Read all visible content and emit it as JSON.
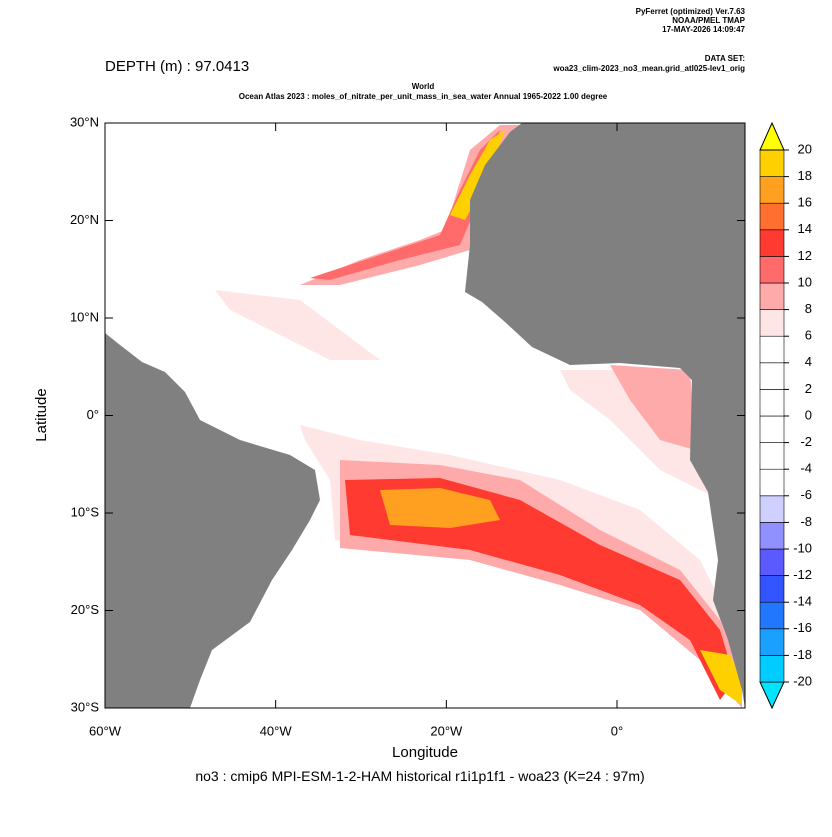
{
  "header": {
    "software": "PyFerret (optimized) Ver.7.63",
    "org": "NOAA/PMEL TMAP",
    "date": "17-MAY-2026 14:09:47",
    "dataset_label": "DATA SET:",
    "dataset": "woa23_clim-2023_no3_mean.grid_atl025-lev1_orig"
  },
  "depth": "DEPTH (m) : 97.0413",
  "title": "World",
  "subtitle": "Ocean Atlas 2023 : moles_of_nitrate_per_unit_mass_in_sea_water Annual 1965-2022 1.00 degree",
  "map": {
    "xlabel": "Longitude",
    "ylabel": "Latitude",
    "xlim": [
      -60,
      15
    ],
    "ylim": [
      -30,
      30
    ],
    "xticks": [
      {
        "value": -60,
        "label": "60°W"
      },
      {
        "value": -40,
        "label": "40°W"
      },
      {
        "value": -20,
        "label": "20°W"
      },
      {
        "value": 0,
        "label": "0°"
      }
    ],
    "yticks": [
      {
        "value": 30,
        "label": "30°N"
      },
      {
        "value": 20,
        "label": "20°N"
      },
      {
        "value": 10,
        "label": "10°N"
      },
      {
        "value": 0,
        "label": "0°"
      },
      {
        "value": -10,
        "label": "10°S"
      },
      {
        "value": -20,
        "label": "20°S"
      },
      {
        "value": -30,
        "label": "30°S"
      }
    ]
  },
  "colorbar": {
    "levels": [
      -20,
      -18,
      -16,
      -14,
      -12,
      -10,
      -8,
      -6,
      -4,
      -2,
      0,
      2,
      4,
      6,
      8,
      10,
      12,
      14,
      16,
      18,
      20
    ],
    "colors": [
      "#00e5ff",
      "#00ccff",
      "#1aa0ff",
      "#2277ff",
      "#3355ff",
      "#5a5aff",
      "#9090ff",
      "#d0d0ff",
      "#ffffff",
      "#ffffff",
      "#ffffff",
      "#ffffff",
      "#ffffff",
      "#ffffff",
      "#ffe6e6",
      "#ffaaaa",
      "#ff6a6a",
      "#ff3a30",
      "#ff7030",
      "#ffa020",
      "#ffd000",
      "#ffff00"
    ]
  },
  "caption": "no3 : cmip6 MPI-ESM-1-2-HAM historical r1i1p1f1 - woa23  (K=24 : 97m)"
}
